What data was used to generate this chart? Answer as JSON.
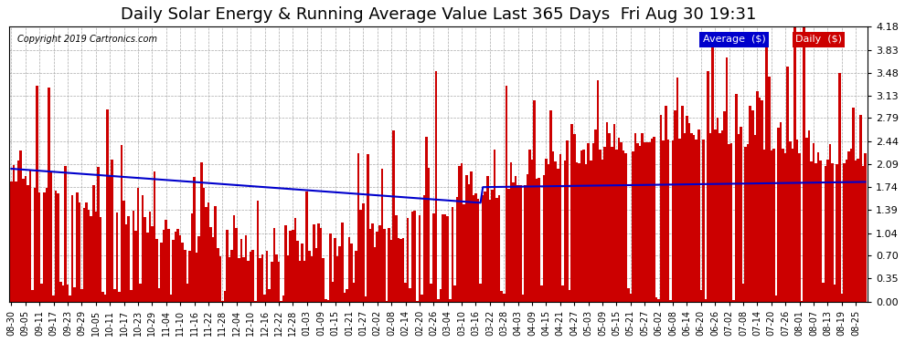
{
  "title": "Daily Solar Energy & Running Average Value Last 365 Days  Fri Aug 30 19:31",
  "copyright": "Copyright 2019 Cartronics.com",
  "ylim": [
    0.0,
    4.18
  ],
  "yticks": [
    0.0,
    0.35,
    0.7,
    1.04,
    1.39,
    1.74,
    2.09,
    2.44,
    2.79,
    3.13,
    3.48,
    3.83,
    4.18
  ],
  "bar_color": "#cc0000",
  "avg_color": "#0000cc",
  "bg_color": "#ffffff",
  "grid_color": "#aaaaaa",
  "title_fontsize": 13,
  "legend_avg_color": "#0000cc",
  "legend_daily_color": "#cc0000",
  "xtick_labels": [
    "08-30",
    "09-05",
    "09-11",
    "09-17",
    "09-23",
    "09-29",
    "10-05",
    "10-11",
    "10-17",
    "10-23",
    "10-29",
    "11-04",
    "11-10",
    "11-16",
    "11-22",
    "11-28",
    "12-04",
    "12-10",
    "12-16",
    "12-22",
    "12-28",
    "01-03",
    "01-09",
    "01-15",
    "01-21",
    "01-27",
    "02-02",
    "02-08",
    "02-14",
    "02-20",
    "02-26",
    "03-04",
    "03-10",
    "03-16",
    "03-22",
    "03-28",
    "04-03",
    "04-09",
    "04-15",
    "04-21",
    "04-27",
    "05-03",
    "05-09",
    "05-15",
    "05-21",
    "05-27",
    "06-02",
    "06-08",
    "06-14",
    "06-20",
    "06-26",
    "07-02",
    "07-08",
    "07-14",
    "07-20",
    "07-26",
    "08-01",
    "08-07",
    "08-13",
    "08-19",
    "08-25"
  ]
}
